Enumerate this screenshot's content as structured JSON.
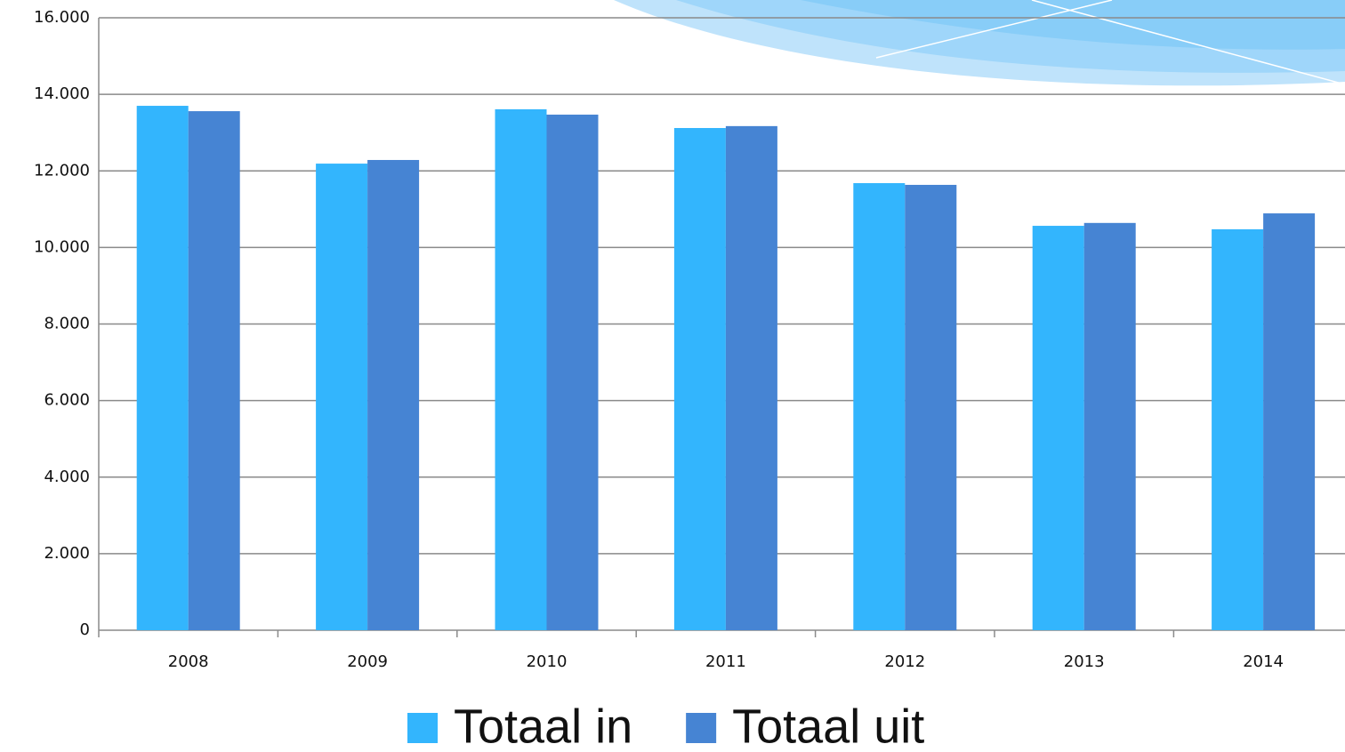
{
  "chart_data": {
    "type": "bar",
    "categories": [
      "2008",
      "2009",
      "2010",
      "2011",
      "2012",
      "2013",
      "2014"
    ],
    "series": [
      {
        "name": "Totaal in",
        "color": "#33b5fd",
        "values": [
          13700,
          12190,
          13610,
          13120,
          11680,
          10565,
          10475
        ]
      },
      {
        "name": "Totaal uit",
        "color": "#4684d3",
        "values": [
          13560,
          12285,
          13470,
          13170,
          11635,
          10640,
          10890
        ]
      }
    ],
    "ylim": [
      0,
      16000
    ],
    "yticks": [
      0,
      {
        "value": 2000,
        "label": "2.000"
      },
      {
        "value": 4000,
        "label": "4.000"
      },
      {
        "value": 6000,
        "label": "6.000"
      },
      {
        "value": 8000,
        "label": "8.000"
      },
      {
        "value": 10000,
        "label": "10.000"
      },
      {
        "value": 12000,
        "label": "12.000"
      },
      {
        "value": 14000,
        "label": "14.000"
      },
      {
        "value": 16000,
        "label": "16.000"
      }
    ],
    "grid": true,
    "legend": "bottom"
  }
}
